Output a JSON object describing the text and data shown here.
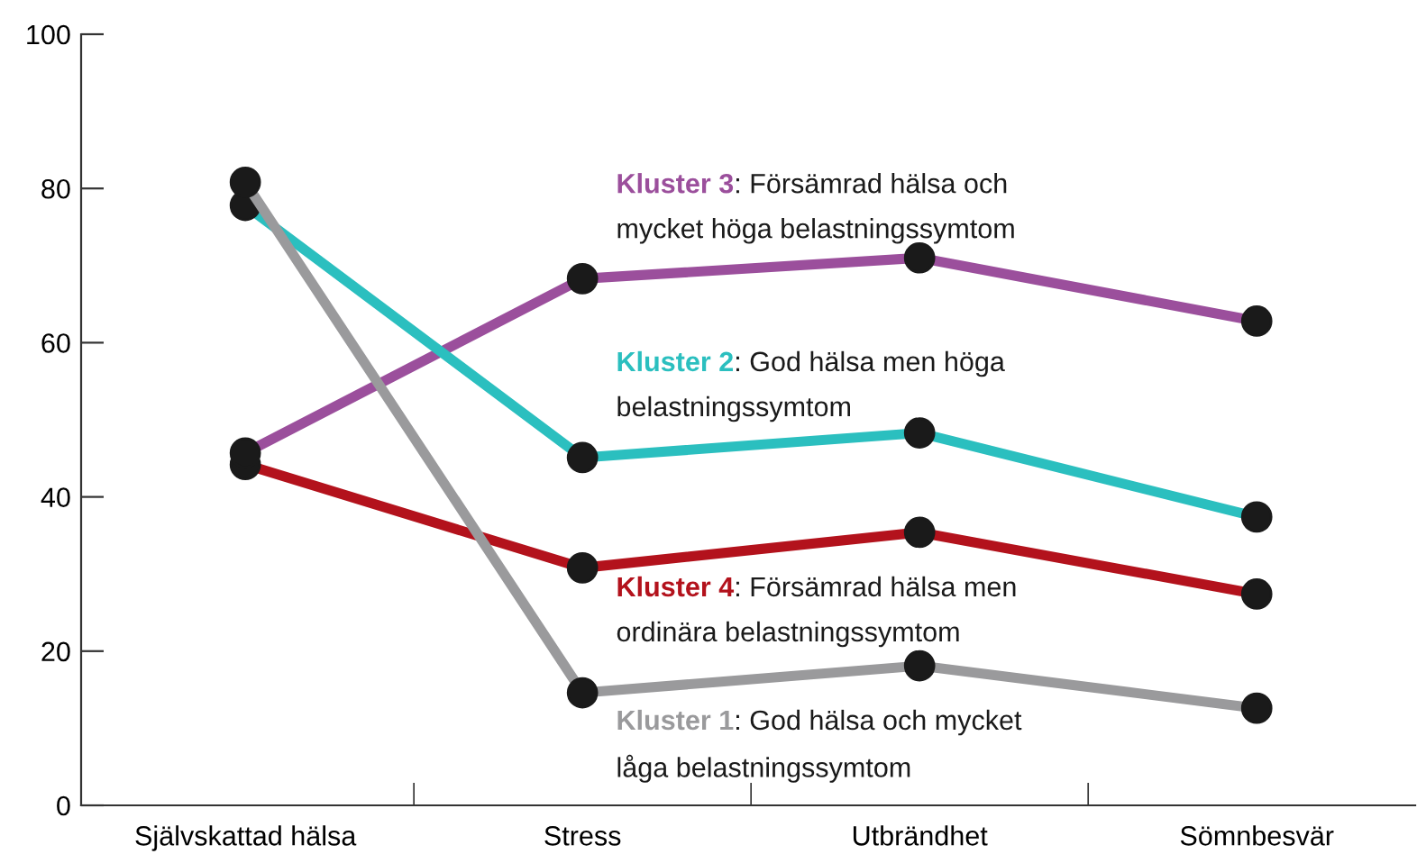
{
  "chart_data": {
    "type": "line",
    "categories": [
      "Självskattad hälsa",
      "Stress",
      "Utbrändhet",
      "Sömnbesvär"
    ],
    "series": [
      {
        "name": "Kluster 1",
        "color": "#9a9a9c",
        "values": [
          80.8,
          14.6,
          18.1,
          12.6
        ]
      },
      {
        "name": "Kluster 2",
        "color": "#2bbfbf",
        "values": [
          77.8,
          45.1,
          48.3,
          37.4
        ]
      },
      {
        "name": "Kluster 3",
        "color": "#9b4f9c",
        "values": [
          45.7,
          68.3,
          71.0,
          62.8
        ]
      },
      {
        "name": "Kluster 4",
        "color": "#b3121c",
        "values": [
          44.2,
          30.8,
          35.4,
          27.4
        ]
      }
    ],
    "annotations": [
      ": God hälsa och mycket\nlåga belastningssymtom",
      ": God hälsa men höga\nbelastningssymtom",
      ": Försämrad hälsa och\nmycket höga belastningssymtom",
      ": Försämrad hälsa men\nordinära belastningssymtom"
    ],
    "ylim": [
      0,
      100
    ],
    "yticks": [
      0,
      20,
      40,
      60,
      80,
      100
    ],
    "grid": false,
    "legend": false,
    "marker": "circle",
    "line_style": "solid"
  }
}
